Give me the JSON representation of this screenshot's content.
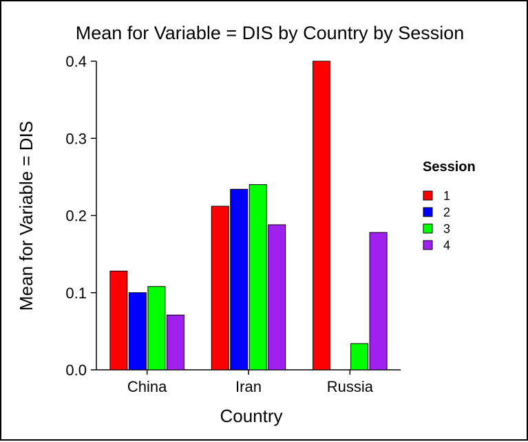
{
  "chart_data": {
    "type": "bar",
    "title": "Mean for Variable = DIS by Country by Session",
    "xlabel": "Country",
    "ylabel": "Mean for Variable = DIS",
    "categories": [
      "China",
      "Iran",
      "Russia"
    ],
    "ylim": [
      0,
      0.4
    ],
    "yticks": [
      "0.0",
      "0.1",
      "0.2",
      "0.3",
      "0.4"
    ],
    "grid": false,
    "legend": {
      "title": "Session",
      "placement": "right"
    },
    "series": [
      {
        "name": "1",
        "color": "#ff0000",
        "values": [
          0.128,
          0.212,
          0.4
        ]
      },
      {
        "name": "2",
        "color": "#0000ff",
        "values": [
          0.1,
          0.234,
          null
        ]
      },
      {
        "name": "3",
        "color": "#00ff00",
        "values": [
          0.108,
          0.24,
          0.034
        ]
      },
      {
        "name": "4",
        "color": "#a020f0",
        "values": [
          0.071,
          0.188,
          0.178
        ]
      }
    ]
  }
}
